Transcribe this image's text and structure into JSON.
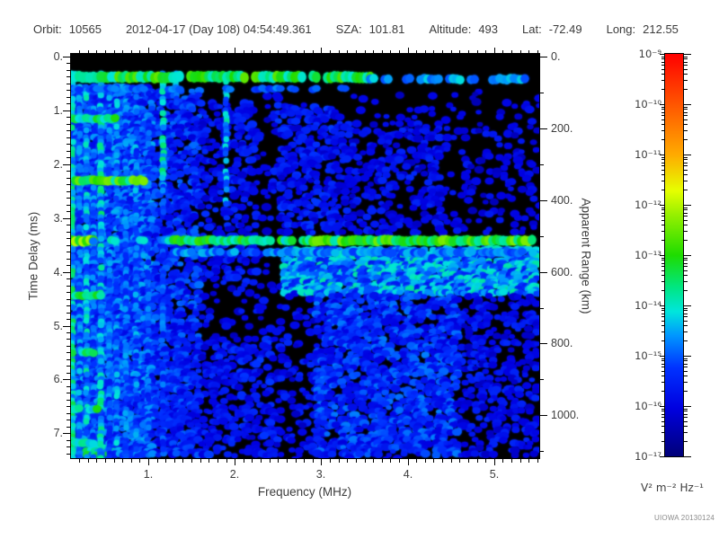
{
  "header": {
    "fields": [
      {
        "label": "Orbit:",
        "value": "10565"
      },
      {
        "label": "",
        "value": "2012-04-17 (Day 108) 04:54:49.361"
      },
      {
        "label": "SZA:",
        "value": "101.81"
      },
      {
        "label": "Altitude:",
        "value": "493"
      },
      {
        "label": "Lat:",
        "value": "-72.49"
      },
      {
        "label": "Long:",
        "value": "212.55"
      }
    ]
  },
  "chart_data": {
    "type": "heatmap",
    "description": "Radar sounder ionogram spectrogram: spectral density vs frequency and time delay",
    "xlabel": "Frequency (MHz)",
    "ylabel_left": "Time Delay (ms)",
    "ylabel_right": "Apparent Range (km)",
    "x_range_mhz": [
      0.1,
      5.5
    ],
    "x_tick_values": [
      1,
      2,
      3,
      4,
      5
    ],
    "x_tick_labels": [
      "1.",
      "2.",
      "3.",
      "4.",
      "5."
    ],
    "x_minor_step_mhz": 0.1,
    "y_left_range_ms": [
      0,
      7.45
    ],
    "y_left_tick_values": [
      0,
      1,
      2,
      3,
      4,
      5,
      6,
      7
    ],
    "y_left_tick_labels": [
      "0.",
      "1.",
      "2.",
      "3.",
      "4.",
      "5.",
      "6.",
      "7."
    ],
    "y_left_minor_step_ms": 0.125,
    "y_right_tick_values": [
      0,
      200,
      400,
      600,
      800,
      1000
    ],
    "y_right_tick_labels": [
      "0.",
      "200.",
      "400.",
      "600.",
      "800.",
      "1000."
    ],
    "y_right_minor_step_km": 100,
    "range_km_per_ms": 150,
    "grid": false,
    "colorbar": {
      "scale": "log",
      "min_exponent": -17,
      "max_exponent": -9,
      "tick_exponents": [
        -9,
        -10,
        -11,
        -12,
        -13,
        -14,
        -15,
        -16,
        -17
      ],
      "tick_labels": [
        "10⁻⁹",
        "10⁻¹⁰",
        "10⁻¹¹",
        "10⁻¹²",
        "10⁻¹³",
        "10⁻¹⁴",
        "10⁻¹⁵",
        "10⁻¹⁶",
        "10⁻¹⁷"
      ],
      "units": "V² m⁻² Hz⁻¹",
      "stops": [
        [
          0.0,
          "#000078"
        ],
        [
          0.12,
          "#0000E0"
        ],
        [
          0.22,
          "#0032FF"
        ],
        [
          0.3,
          "#0096FF"
        ],
        [
          0.36,
          "#00E6DC"
        ],
        [
          0.42,
          "#00E682"
        ],
        [
          0.5,
          "#1EDC00"
        ],
        [
          0.6,
          "#96F000"
        ],
        [
          0.66,
          "#E6FF00"
        ],
        [
          0.75,
          "#FFAA00"
        ],
        [
          0.875,
          "#FF5500"
        ],
        [
          1.0,
          "#FF0000"
        ]
      ]
    },
    "features": {
      "background": "#000000",
      "horizontal_bands": [
        {
          "d": 0.38,
          "h": 0.1,
          "f0": 0.1,
          "f1": 3.55,
          "t": 0.5,
          "p": 0.94
        },
        {
          "d": 0.42,
          "h": 0.08,
          "f0": 3.55,
          "f1": 5.45,
          "t": 0.32,
          "p": 0.7
        },
        {
          "d": 0.6,
          "h": 0.06,
          "f0": 0.1,
          "f1": 3.4,
          "t": 0.27,
          "p": 0.55
        },
        {
          "d": 1.15,
          "h": 0.07,
          "f0": 0.1,
          "f1": 0.62,
          "t": 0.46,
          "p": 0.9
        },
        {
          "d": 2.3,
          "h": 0.08,
          "f0": 0.1,
          "f1": 0.95,
          "t": 0.52,
          "p": 0.92
        },
        {
          "d": 3.42,
          "h": 0.09,
          "f0": 0.1,
          "f1": 0.35,
          "t": 0.58,
          "p": 1.0
        },
        {
          "d": 3.42,
          "h": 0.07,
          "f0": 0.35,
          "f1": 1.28,
          "t": 0.36,
          "p": 0.55
        },
        {
          "d": 3.42,
          "h": 0.08,
          "f0": 1.28,
          "f1": 2.85,
          "t": 0.47,
          "p": 0.88
        },
        {
          "d": 3.42,
          "h": 0.09,
          "f0": 2.85,
          "f1": 5.45,
          "t": 0.52,
          "p": 0.98
        },
        {
          "d": 3.64,
          "h": 0.07,
          "f0": 1.28,
          "f1": 5.45,
          "t": 0.3,
          "p": 0.8
        },
        {
          "d": 4.45,
          "h": 0.07,
          "f0": 0.1,
          "f1": 0.45,
          "t": 0.46,
          "p": 0.88
        },
        {
          "d": 5.5,
          "h": 0.07,
          "f0": 0.1,
          "f1": 0.5,
          "t": 0.45,
          "p": 0.85
        },
        {
          "d": 6.55,
          "h": 0.07,
          "f0": 0.1,
          "f1": 0.4,
          "t": 0.44,
          "p": 0.85
        },
        {
          "d": 7.18,
          "h": 0.07,
          "f0": 0.1,
          "f1": 0.35,
          "t": 0.42,
          "p": 0.8
        }
      ],
      "vertical_stripes": [
        {
          "f": 0.12,
          "w": 0.035,
          "d0": 0.3,
          "d1": 7.45,
          "t": 0.4,
          "p": 0.95
        },
        {
          "f": 0.205,
          "w": 0.03,
          "d0": 0.55,
          "d1": 7.45,
          "t": 0.3,
          "p": 0.75
        },
        {
          "f": 0.285,
          "w": 0.03,
          "d0": 0.55,
          "d1": 7.45,
          "t": 0.36,
          "p": 0.8
        },
        {
          "f": 0.365,
          "w": 0.03,
          "d0": 0.55,
          "d1": 7.45,
          "t": 0.28,
          "p": 0.7
        },
        {
          "f": 0.45,
          "w": 0.035,
          "d0": 0.3,
          "d1": 7.45,
          "t": 0.38,
          "p": 0.85
        },
        {
          "f": 0.55,
          "w": 0.028,
          "d0": 0.55,
          "d1": 7.45,
          "t": 0.28,
          "p": 0.65
        },
        {
          "f": 0.635,
          "w": 0.028,
          "d0": 0.55,
          "d1": 7.45,
          "t": 0.32,
          "p": 0.7
        },
        {
          "f": 0.74,
          "w": 0.028,
          "d0": 0.6,
          "d1": 7.45,
          "t": 0.28,
          "p": 0.6
        },
        {
          "f": 0.86,
          "w": 0.028,
          "d0": 0.6,
          "d1": 7.45,
          "t": 0.3,
          "p": 0.6
        },
        {
          "f": 1.0,
          "w": 0.028,
          "d0": 0.6,
          "d1": 7.45,
          "t": 0.26,
          "p": 0.55
        },
        {
          "f": 1.17,
          "w": 0.035,
          "d0": 0.3,
          "d1": 2.4,
          "t": 0.44,
          "p": 0.92
        },
        {
          "f": 1.17,
          "w": 0.03,
          "d0": 2.4,
          "d1": 7.45,
          "t": 0.26,
          "p": 0.5
        },
        {
          "f": 1.32,
          "w": 0.03,
          "d0": 0.3,
          "d1": 1.3,
          "t": 0.34,
          "p": 0.8
        },
        {
          "f": 1.9,
          "w": 0.025,
          "d0": 0.45,
          "d1": 2.9,
          "t": 0.36,
          "p": 0.85
        }
      ],
      "diffuse_regions": [
        {
          "f0": 0.1,
          "f1": 1.05,
          "d0": 0.55,
          "d1": 7.45,
          "density": 0.8,
          "t": 0.24
        },
        {
          "f0": 1.05,
          "f1": 1.6,
          "d0": 0.6,
          "d1": 7.45,
          "density": 0.5,
          "t": 0.2
        },
        {
          "f0": 1.6,
          "f1": 2.25,
          "d0": 0.8,
          "d1": 4.2,
          "density": 0.32,
          "t": 0.16
        },
        {
          "f0": 1.6,
          "f1": 2.25,
          "d0": 4.2,
          "d1": 7.45,
          "density": 0.12,
          "t": 0.14
        },
        {
          "f0": 2.25,
          "f1": 2.45,
          "d0": 0.8,
          "d1": 7.45,
          "density": 0.07,
          "t": 0.13
        },
        {
          "f0": 2.45,
          "f1": 2.95,
          "d0": 4.6,
          "d1": 7.45,
          "density": 0.15,
          "t": 0.15
        },
        {
          "f0": 2.45,
          "f1": 3.2,
          "d0": 0.9,
          "d1": 3.3,
          "density": 0.38,
          "t": 0.17
        },
        {
          "f0": 3.2,
          "f1": 4.4,
          "d0": 1.2,
          "d1": 3.3,
          "density": 0.3,
          "t": 0.15
        },
        {
          "f0": 4.4,
          "f1": 5.5,
          "d0": 1.3,
          "d1": 3.3,
          "density": 0.12,
          "t": 0.13
        },
        {
          "f0": 3.55,
          "f1": 5.5,
          "d0": 0.6,
          "d1": 1.3,
          "density": 0.05,
          "t": 0.12
        },
        {
          "f0": 2.55,
          "f1": 5.5,
          "d0": 3.55,
          "d1": 4.4,
          "density": 0.85,
          "t": 0.3
        },
        {
          "f0": 2.95,
          "f1": 4.6,
          "d0": 4.4,
          "d1": 7.45,
          "density": 0.55,
          "t": 0.21
        },
        {
          "f0": 4.6,
          "f1": 5.5,
          "d0": 4.4,
          "d1": 7.45,
          "density": 0.3,
          "t": 0.15
        },
        {
          "f0": 1.05,
          "f1": 2.55,
          "d0": 5.2,
          "d1": 7.45,
          "density": 0.25,
          "t": 0.17
        },
        {
          "f0": 0.1,
          "f1": 0.6,
          "d0": 7.25,
          "d1": 7.45,
          "density": 0.95,
          "t": 0.36
        }
      ]
    },
    "watermark": "UIOWA 20130124"
  }
}
